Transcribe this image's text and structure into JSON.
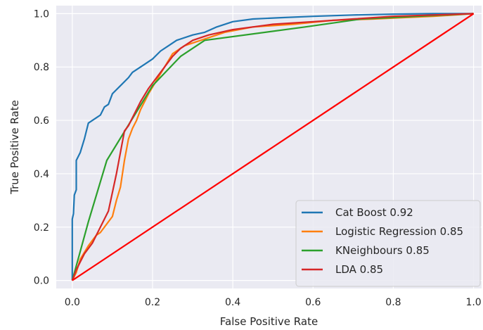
{
  "chart_data": {
    "type": "line",
    "title": "",
    "xlabel": "False Positive Rate",
    "ylabel": "True Positive Rate",
    "xlim": [
      -0.04,
      1.02
    ],
    "ylim": [
      -0.03,
      1.03
    ],
    "xticks": [
      0.0,
      0.2,
      0.4,
      0.6,
      0.8,
      1.0
    ],
    "yticks": [
      0.0,
      0.2,
      0.4,
      0.6,
      0.8,
      1.0
    ],
    "tick_labels_x": [
      "0.0",
      "0.2",
      "0.4",
      "0.6",
      "0.8",
      "1.0"
    ],
    "tick_labels_y": [
      "0.0",
      "0.2",
      "0.4",
      "0.6",
      "0.8",
      "1.0"
    ],
    "grid": true,
    "legend_position": "lower-right",
    "background_color": "#eaeaf2",
    "series": [
      {
        "name": "Cat Boost 0.92",
        "color": "#1f77b4",
        "points": [
          [
            0,
            0
          ],
          [
            0,
            0.23
          ],
          [
            0.003,
            0.25
          ],
          [
            0.005,
            0.32
          ],
          [
            0.01,
            0.34
          ],
          [
            0.01,
            0.45
          ],
          [
            0.02,
            0.48
          ],
          [
            0.03,
            0.53
          ],
          [
            0.04,
            0.59
          ],
          [
            0.06,
            0.61
          ],
          [
            0.07,
            0.62
          ],
          [
            0.08,
            0.65
          ],
          [
            0.09,
            0.66
          ],
          [
            0.1,
            0.7
          ],
          [
            0.12,
            0.73
          ],
          [
            0.14,
            0.76
          ],
          [
            0.15,
            0.78
          ],
          [
            0.18,
            0.81
          ],
          [
            0.2,
            0.83
          ],
          [
            0.22,
            0.86
          ],
          [
            0.24,
            0.88
          ],
          [
            0.26,
            0.9
          ],
          [
            0.3,
            0.92
          ],
          [
            0.33,
            0.93
          ],
          [
            0.36,
            0.95
          ],
          [
            0.4,
            0.97
          ],
          [
            0.45,
            0.98
          ],
          [
            0.52,
            0.985
          ],
          [
            0.6,
            0.99
          ],
          [
            0.7,
            0.995
          ],
          [
            0.8,
            0.998
          ],
          [
            0.9,
            1.0
          ],
          [
            1.0,
            1.0
          ]
        ]
      },
      {
        "name": "Logistic Regression 0.85",
        "color": "#ff7f0e",
        "points": [
          [
            0,
            0
          ],
          [
            0.01,
            0.03
          ],
          [
            0.02,
            0.08
          ],
          [
            0.04,
            0.13
          ],
          [
            0.05,
            0.15
          ],
          [
            0.06,
            0.17
          ],
          [
            0.07,
            0.18
          ],
          [
            0.08,
            0.2
          ],
          [
            0.1,
            0.24
          ],
          [
            0.11,
            0.3
          ],
          [
            0.12,
            0.35
          ],
          [
            0.13,
            0.45
          ],
          [
            0.14,
            0.53
          ],
          [
            0.15,
            0.57
          ],
          [
            0.16,
            0.6
          ],
          [
            0.17,
            0.64
          ],
          [
            0.19,
            0.7
          ],
          [
            0.21,
            0.75
          ],
          [
            0.23,
            0.8
          ],
          [
            0.25,
            0.85
          ],
          [
            0.28,
            0.88
          ],
          [
            0.32,
            0.9
          ],
          [
            0.38,
            0.93
          ],
          [
            0.45,
            0.95
          ],
          [
            0.55,
            0.96
          ],
          [
            0.65,
            0.975
          ],
          [
            0.75,
            0.98
          ],
          [
            0.82,
            0.985
          ],
          [
            0.9,
            0.99
          ],
          [
            1.0,
            1.0
          ]
        ]
      },
      {
        "name": "KNeighbours 0.85",
        "color": "#2ca02c",
        "points": [
          [
            0,
            0
          ],
          [
            0.04,
            0.22
          ],
          [
            0.086,
            0.45
          ],
          [
            0.2,
            0.73
          ],
          [
            0.27,
            0.84
          ],
          [
            0.33,
            0.9
          ],
          [
            0.58,
            0.95
          ],
          [
            0.72,
            0.98
          ],
          [
            1.0,
            1.0
          ]
        ]
      },
      {
        "name": "LDA 0.85",
        "color": "#d62728",
        "points": [
          [
            0,
            0
          ],
          [
            0.01,
            0.04
          ],
          [
            0.02,
            0.07
          ],
          [
            0.03,
            0.1
          ],
          [
            0.05,
            0.14
          ],
          [
            0.07,
            0.2
          ],
          [
            0.09,
            0.26
          ],
          [
            0.1,
            0.33
          ],
          [
            0.11,
            0.4
          ],
          [
            0.12,
            0.48
          ],
          [
            0.13,
            0.56
          ],
          [
            0.14,
            0.58
          ],
          [
            0.15,
            0.61
          ],
          [
            0.17,
            0.67
          ],
          [
            0.19,
            0.72
          ],
          [
            0.21,
            0.76
          ],
          [
            0.23,
            0.8
          ],
          [
            0.25,
            0.84
          ],
          [
            0.27,
            0.87
          ],
          [
            0.3,
            0.9
          ],
          [
            0.34,
            0.92
          ],
          [
            0.4,
            0.94
          ],
          [
            0.5,
            0.96
          ],
          [
            0.6,
            0.97
          ],
          [
            0.7,
            0.98
          ],
          [
            0.8,
            0.99
          ],
          [
            0.9,
            0.995
          ],
          [
            1.0,
            1.0
          ]
        ]
      },
      {
        "name": "",
        "color": "#ff0000",
        "points": [
          [
            0,
            0
          ],
          [
            1,
            1
          ]
        ]
      }
    ]
  }
}
